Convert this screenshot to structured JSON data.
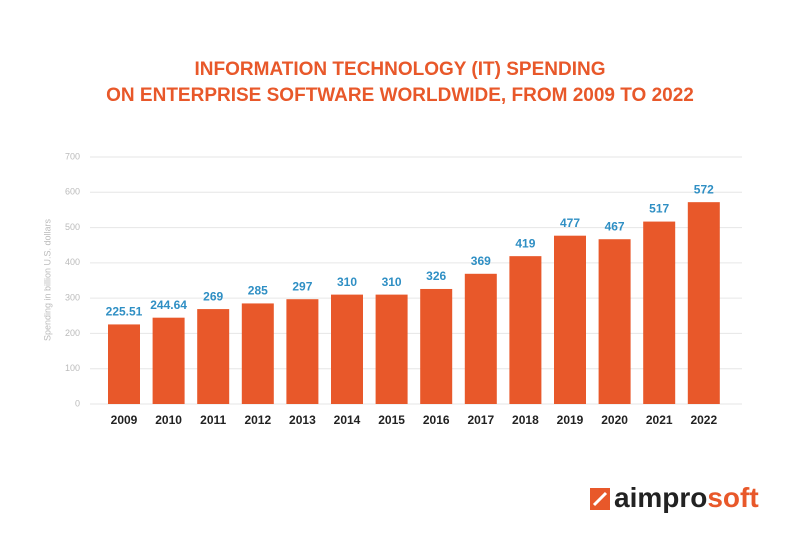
{
  "chart_data": {
    "type": "bar",
    "title": [
      "INFORMATION TECHNOLOGY (IT) SPENDING",
      "ON ENTERPRISE SOFTWARE WORLDWIDE, FROM 2009 TO 2022"
    ],
    "y_label": "Spending in billion U.S. dollars",
    "categories": [
      "2009",
      "2010",
      "2011",
      "2012",
      "2013",
      "2014",
      "2015",
      "2016",
      "2017",
      "2018",
      "2019",
      "2020",
      "2021",
      "2022"
    ],
    "values": [
      225.51,
      244.64,
      269,
      285,
      297,
      310,
      310,
      326,
      369,
      419,
      477,
      467,
      517,
      572
    ],
    "color": "#e8582a",
    "label_color": "#2f8fc4",
    "ylim": [
      0,
      700
    ],
    "yticks": [
      0,
      100,
      200,
      300,
      400,
      500,
      600,
      700
    ],
    "grid": true
  },
  "brand": {
    "dark": "aimpro",
    "accent": "soft"
  }
}
